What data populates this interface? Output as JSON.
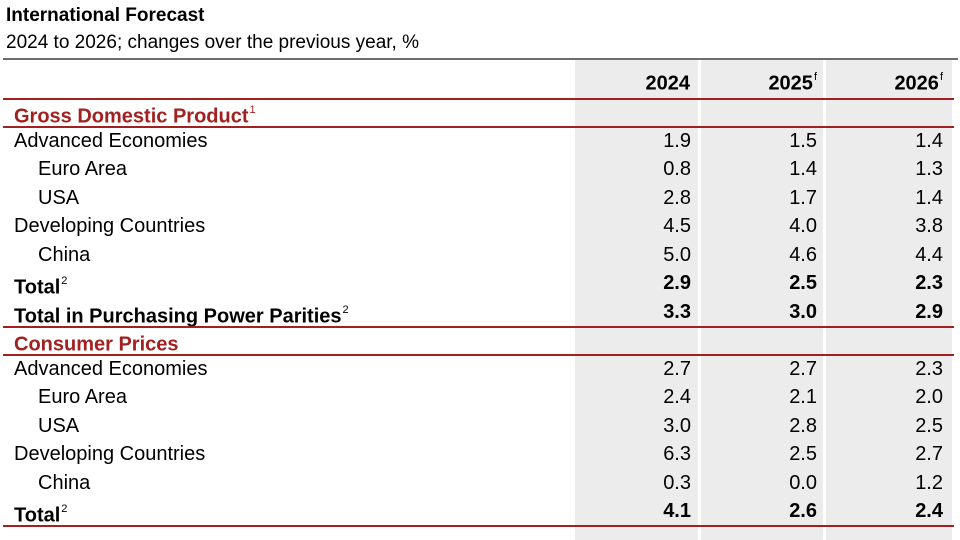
{
  "title": "International Forecast",
  "subtitle": "2024 to 2026; changes over the previous year, %",
  "columns": [
    {
      "label": "2024",
      "sup": ""
    },
    {
      "label": "2025",
      "sup": "f"
    },
    {
      "label": "2026",
      "sup": "f"
    }
  ],
  "sections": [
    {
      "label": "Gross Domestic Product",
      "sup": "1",
      "rows": [
        {
          "label": "Advanced Economies",
          "values": [
            "1.9",
            "1.5",
            "1.4"
          ]
        },
        {
          "label": "Euro Area",
          "values": [
            "0.8",
            "1.4",
            "1.3"
          ]
        },
        {
          "label": "USA",
          "values": [
            "2.8",
            "1.7",
            "1.4"
          ]
        },
        {
          "label": "Developing Countries",
          "values": [
            "4.5",
            "4.0",
            "3.8"
          ]
        },
        {
          "label": "China",
          "values": [
            "5.0",
            "4.6",
            "4.4"
          ]
        },
        {
          "label": "Total",
          "sup": "2",
          "values": [
            "2.9",
            "2.5",
            "2.3"
          ]
        },
        {
          "label": "Total in Purchasing Power Parities",
          "sup": "2",
          "values": [
            "3.3",
            "3.0",
            "2.9"
          ]
        }
      ]
    },
    {
      "label": "Consumer Prices",
      "sup": "",
      "rows": [
        {
          "label": "Advanced Economies",
          "values": [
            "2.7",
            "2.7",
            "2.3"
          ]
        },
        {
          "label": "Euro Area",
          "values": [
            "2.4",
            "2.1",
            "2.0"
          ]
        },
        {
          "label": "USA",
          "values": [
            "3.0",
            "2.8",
            "2.5"
          ]
        },
        {
          "label": "Developing Countries",
          "values": [
            "6.3",
            "2.5",
            "2.7"
          ]
        },
        {
          "label": "China",
          "values": [
            "0.3",
            "0.0",
            "1.2"
          ]
        },
        {
          "label": "Total",
          "sup": "2",
          "values": [
            "4.1",
            "2.6",
            "2.4"
          ]
        }
      ]
    }
  ]
}
